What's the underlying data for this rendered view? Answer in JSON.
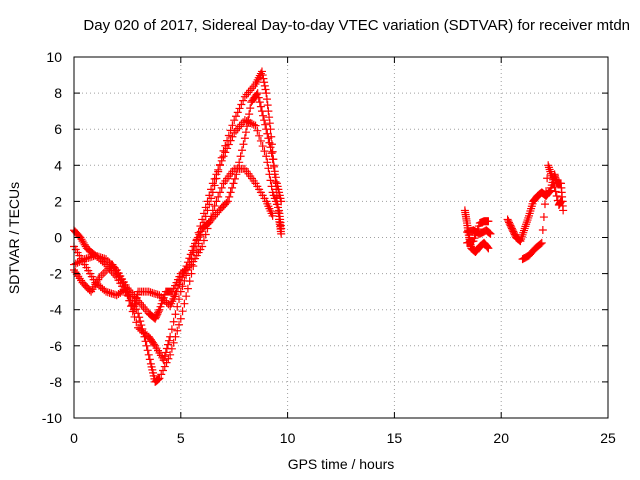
{
  "chart_data": {
    "type": "scatter",
    "title": "Day 020 of 2017, Sidereal Day-to-day VTEC variation (SDTVAR) for receiver mtdn",
    "xlabel": "GPS time / hours",
    "ylabel": "SDTVAR / TECUs",
    "xlim": [
      0,
      25
    ],
    "ylim": [
      -10,
      10
    ],
    "x_ticks": [
      "0",
      "5",
      "10",
      "15",
      "20",
      "25"
    ],
    "y_ticks": [
      "-10",
      "-8",
      "-6",
      "-4",
      "-2",
      "0",
      "2",
      "4",
      "6",
      "8",
      "10"
    ],
    "grid": true,
    "legend": "none",
    "marker": "+",
    "marker_color": "#ff0000",
    "series": [
      {
        "values": [
          [
            0.0,
            0.4
          ],
          [
            0.3,
            0.0
          ],
          [
            0.6,
            -0.6
          ],
          [
            1.0,
            -1.0
          ],
          [
            1.5,
            -1.2
          ],
          [
            2.0,
            -1.8
          ],
          [
            2.5,
            -2.8
          ],
          [
            3.0,
            -4.2
          ],
          [
            3.3,
            -5.5
          ],
          [
            3.6,
            -7.0
          ],
          [
            3.8,
            -8.0
          ],
          [
            4.0,
            -7.8
          ],
          [
            4.5,
            -6.5
          ],
          [
            5.0,
            -4.5
          ],
          [
            5.5,
            -2.0
          ],
          [
            6.0,
            0.5
          ],
          [
            6.5,
            2.5
          ],
          [
            7.0,
            4.8
          ],
          [
            7.5,
            6.5
          ],
          [
            8.0,
            7.8
          ],
          [
            8.5,
            8.5
          ],
          [
            8.8,
            9.2
          ],
          [
            9.0,
            8.0
          ],
          [
            9.2,
            6.0
          ],
          [
            9.4,
            3.5
          ],
          [
            9.6,
            1.0
          ],
          [
            9.7,
            0.2
          ]
        ]
      },
      {
        "values": [
          [
            0.0,
            -1.5
          ],
          [
            0.5,
            -1.2
          ],
          [
            1.0,
            -1.0
          ],
          [
            1.5,
            -1.5
          ],
          [
            2.0,
            -2.2
          ],
          [
            2.5,
            -3.2
          ],
          [
            3.0,
            -5.0
          ],
          [
            3.5,
            -5.5
          ],
          [
            3.8,
            -6.0
          ],
          [
            4.2,
            -6.8
          ],
          [
            4.5,
            -5.5
          ],
          [
            5.0,
            -3.0
          ],
          [
            5.5,
            -1.2
          ],
          [
            6.0,
            1.0
          ],
          [
            6.5,
            3.0
          ],
          [
            7.0,
            4.5
          ],
          [
            7.5,
            5.8
          ],
          [
            8.0,
            6.5
          ],
          [
            8.5,
            6.2
          ],
          [
            9.0,
            4.5
          ],
          [
            9.3,
            2.5
          ],
          [
            9.6,
            1.5
          ],
          [
            9.7,
            0.5
          ]
        ]
      },
      {
        "values": [
          [
            0.0,
            -0.5
          ],
          [
            0.5,
            -1.5
          ],
          [
            1.0,
            -2.5
          ],
          [
            1.5,
            -3.0
          ],
          [
            2.0,
            -3.2
          ],
          [
            2.5,
            -2.8
          ],
          [
            3.0,
            -3.5
          ],
          [
            3.5,
            -4.2
          ],
          [
            3.8,
            -4.5
          ],
          [
            4.0,
            -4.0
          ],
          [
            4.3,
            -3.0
          ],
          [
            4.6,
            -3.0
          ],
          [
            5.0,
            -2.0
          ],
          [
            5.5,
            -1.5
          ],
          [
            6.0,
            -0.5
          ],
          [
            6.5,
            1.5
          ],
          [
            7.0,
            3.0
          ],
          [
            7.5,
            3.8
          ],
          [
            8.0,
            3.8
          ],
          [
            8.5,
            3.0
          ],
          [
            9.0,
            2.0
          ],
          [
            9.3,
            1.2
          ]
        ]
      },
      {
        "values": [
          [
            0.0,
            -1.8
          ],
          [
            0.4,
            -2.5
          ],
          [
            0.8,
            -3.0
          ],
          [
            1.2,
            -2.2
          ],
          [
            1.8,
            -1.5
          ],
          [
            2.3,
            -2.5
          ],
          [
            2.8,
            -4.0
          ],
          [
            3.0,
            -3.0
          ],
          [
            3.5,
            -3.0
          ],
          [
            4.0,
            -3.2
          ],
          [
            4.5,
            -3.8
          ],
          [
            4.8,
            -3.0
          ],
          [
            5.2,
            -1.8
          ],
          [
            5.6,
            -0.5
          ],
          [
            6.0,
            0.5
          ],
          [
            6.3,
            0.8
          ],
          [
            6.8,
            1.5
          ],
          [
            7.2,
            2.0
          ],
          [
            7.6,
            3.5
          ],
          [
            8.0,
            5.5
          ],
          [
            8.3,
            7.5
          ],
          [
            8.6,
            8.0
          ],
          [
            8.9,
            6.5
          ],
          [
            9.2,
            5.0
          ],
          [
            9.5,
            3.0
          ],
          [
            9.7,
            2.0
          ]
        ]
      },
      {
        "values": [
          [
            18.3,
            1.5
          ],
          [
            18.4,
            0.8
          ],
          [
            18.5,
            0.0
          ],
          [
            18.6,
            -0.6
          ],
          [
            18.8,
            -0.8
          ],
          [
            19.0,
            -0.5
          ],
          [
            19.2,
            -0.3
          ],
          [
            19.4,
            -0.6
          ],
          [
            18.4,
            0.3
          ],
          [
            18.7,
            0.4
          ],
          [
            19.0,
            0.2
          ],
          [
            19.3,
            0.4
          ],
          [
            19.5,
            0.2
          ],
          [
            18.4,
            -0.3
          ],
          [
            18.7,
            -0.2
          ],
          [
            19.0,
            0.8
          ],
          [
            19.2,
            0.9
          ],
          [
            19.4,
            0.9
          ]
        ]
      },
      {
        "values": [
          [
            20.3,
            1.0
          ],
          [
            20.5,
            0.5
          ],
          [
            20.7,
            0.0
          ],
          [
            20.9,
            -0.2
          ],
          [
            21.1,
            0.5
          ],
          [
            21.3,
            1.2
          ],
          [
            21.5,
            2.0
          ],
          [
            21.7,
            2.3
          ],
          [
            21.9,
            2.5
          ],
          [
            22.1,
            2.3
          ],
          [
            22.3,
            2.6
          ],
          [
            22.5,
            3.5
          ],
          [
            22.6,
            3.0
          ],
          [
            22.8,
            3.0
          ],
          [
            22.9,
            1.5
          ],
          [
            21.0,
            -1.2
          ],
          [
            21.3,
            -1.0
          ],
          [
            21.6,
            -0.6
          ],
          [
            21.9,
            -0.3
          ],
          [
            22.2,
            4.0
          ],
          [
            22.4,
            3.3
          ],
          [
            22.7,
            1.8
          ],
          [
            22.8,
            2.0
          ]
        ]
      }
    ]
  }
}
